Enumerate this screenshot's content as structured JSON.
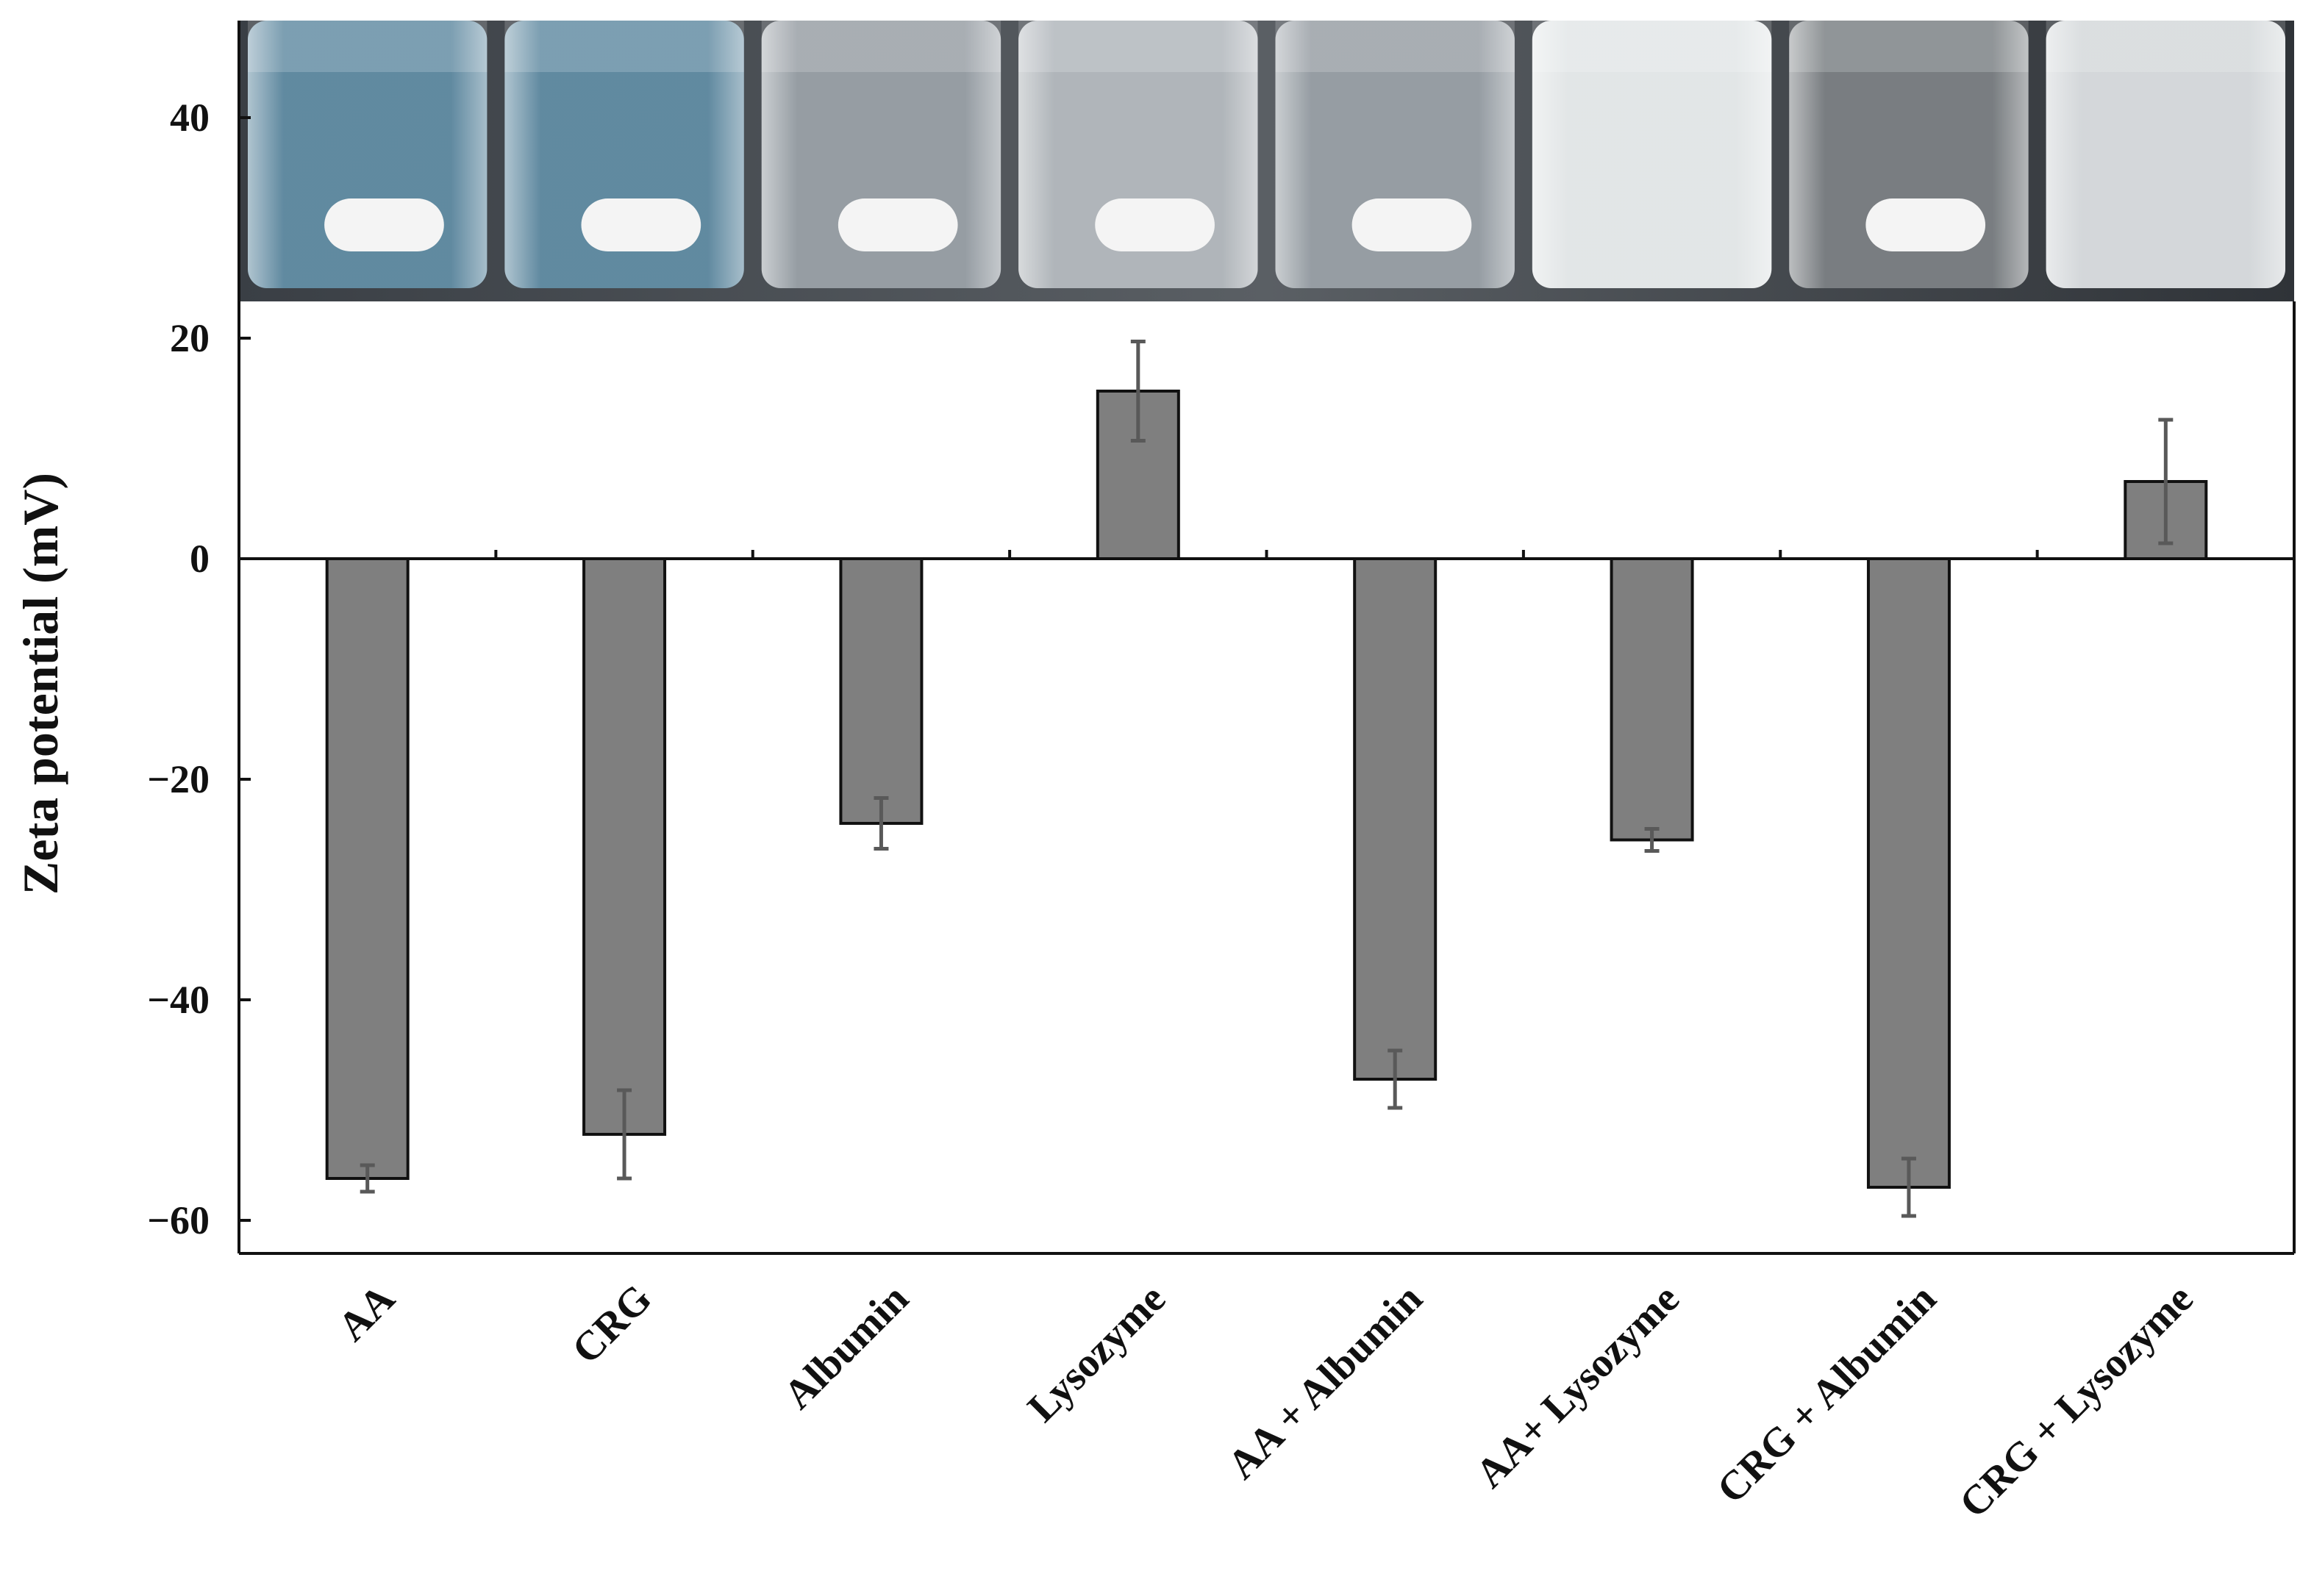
{
  "chart_data": {
    "type": "bar",
    "title": "",
    "xlabel": "",
    "ylabel": "Zeta potential (mV)",
    "ylim": [
      -63,
      50
    ],
    "yticks": [
      40,
      20,
      0,
      -20,
      -40,
      -60
    ],
    "ytick_labels": [
      "40",
      "20",
      "0",
      "−20",
      "−40",
      "−60"
    ],
    "categories": [
      "AA",
      "CRG",
      "Albumin",
      "Lysozyme",
      "AA + Albumin",
      "AA+ Lysozyme",
      "CRG + Albumin",
      "CRG + Lysozyme"
    ],
    "values": [
      -56.2,
      -52.2,
      -24.0,
      15.2,
      -47.2,
      -25.5,
      -57.0,
      7.0
    ],
    "errors": [
      1.2,
      4.0,
      2.3,
      4.5,
      2.6,
      1.0,
      2.6,
      5.6
    ],
    "bar_color": "#7f7f7f",
    "error_color": "#595959",
    "grid": false,
    "legend": "none",
    "inset_photo": {
      "description_icon": "vial-photo",
      "vials": [
        {
          "liquid": "clear-blue",
          "stir_bar": true
        },
        {
          "liquid": "clear-blue",
          "stir_bar": true
        },
        {
          "liquid": "clear",
          "stir_bar": true
        },
        {
          "liquid": "clear-hazy",
          "stir_bar": true
        },
        {
          "liquid": "clear",
          "stir_bar": true
        },
        {
          "liquid": "milky-white",
          "stir_bar": false
        },
        {
          "liquid": "clear-dark",
          "stir_bar": true
        },
        {
          "liquid": "cloudy-white",
          "stir_bar": false
        }
      ]
    }
  }
}
